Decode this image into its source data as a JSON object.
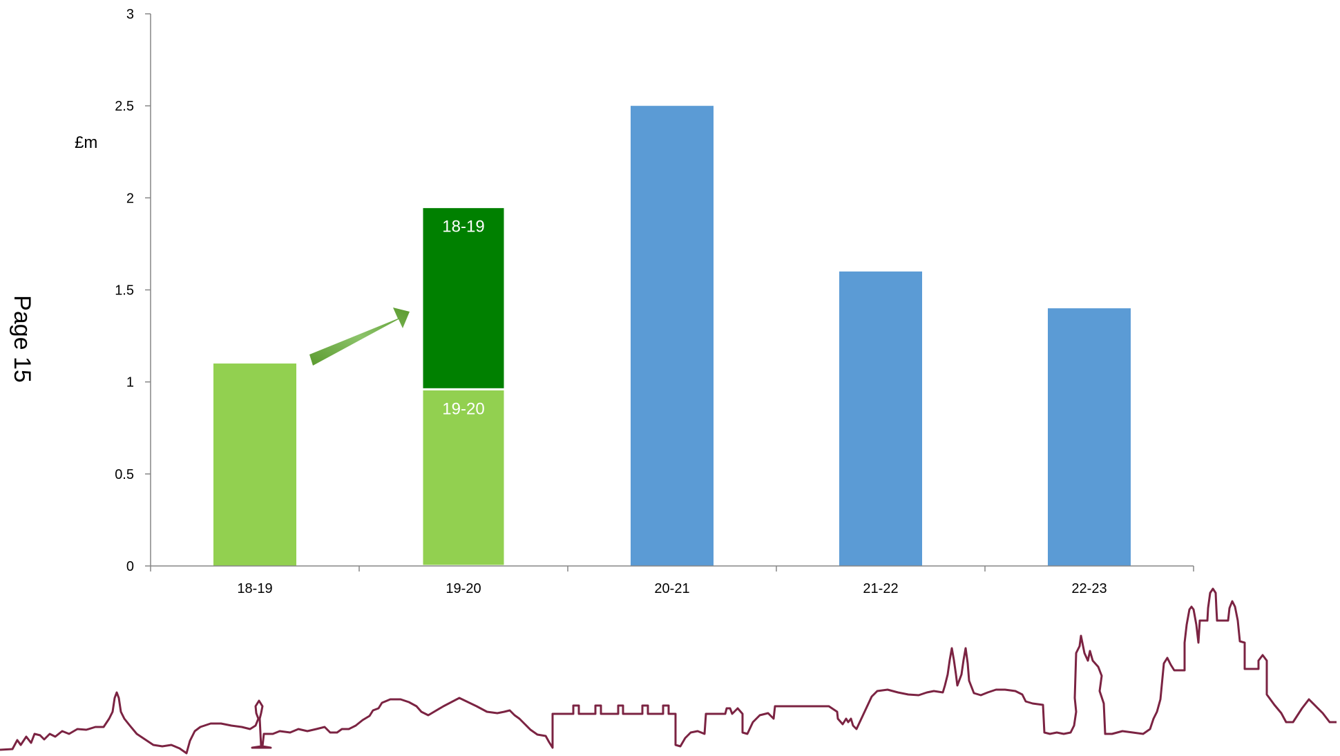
{
  "page_label": "Page 15",
  "colors": {
    "light_green": "#92d050",
    "dark_green": "#008000",
    "blue": "#5b9bd5",
    "arrow": "#6aaa3a",
    "skyline": "#7b2342",
    "axis": "#868686"
  },
  "skyline_icon": "city-skyline-icon",
  "chart_data": {
    "type": "bar",
    "title": "",
    "xlabel": "",
    "ylabel": "£m",
    "ylim": [
      0,
      3
    ],
    "yticks": [
      "0",
      "0.5",
      "1",
      "1.5",
      "2",
      "2.5",
      "3"
    ],
    "categories": [
      "18-19",
      "19-20",
      "20-21",
      "21-22",
      "22-23"
    ],
    "grid": false,
    "legend": "none",
    "bars": [
      {
        "category": "18-19",
        "segments": [
          {
            "value": 1.1,
            "color": "#92d050",
            "label": ""
          }
        ]
      },
      {
        "category": "19-20",
        "segments": [
          {
            "value": 0.96,
            "color": "#92d050",
            "label": "19-20"
          },
          {
            "value": 0.99,
            "color": "#008000",
            "label": "18-19"
          }
        ]
      },
      {
        "category": "20-21",
        "segments": [
          {
            "value": 2.5,
            "color": "#5b9bd5",
            "label": ""
          }
        ]
      },
      {
        "category": "21-22",
        "segments": [
          {
            "value": 1.6,
            "color": "#5b9bd5",
            "label": ""
          }
        ]
      },
      {
        "category": "22-23",
        "segments": [
          {
            "value": 1.4,
            "color": "#5b9bd5",
            "label": ""
          }
        ]
      }
    ],
    "annotations": [
      {
        "type": "arrow",
        "from_category": "18-19",
        "to_category": "19-20"
      }
    ]
  }
}
